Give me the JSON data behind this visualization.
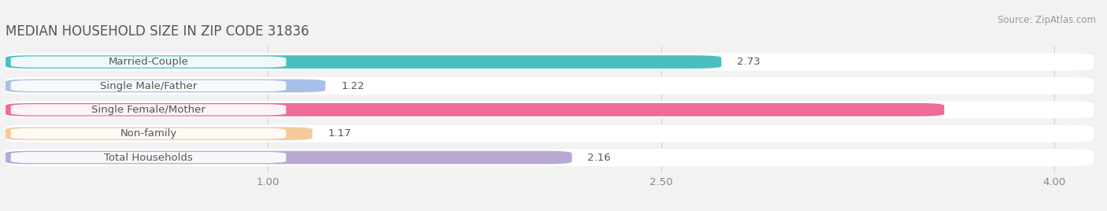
{
  "title": "MEDIAN HOUSEHOLD SIZE IN ZIP CODE 31836",
  "source": "Source: ZipAtlas.com",
  "categories": [
    "Married-Couple",
    "Single Male/Father",
    "Single Female/Mother",
    "Non-family",
    "Total Households"
  ],
  "values": [
    2.73,
    1.22,
    3.58,
    1.17,
    2.16
  ],
  "bar_colors": [
    "#4BBFBF",
    "#AABFE8",
    "#F06A9B",
    "#F5C99A",
    "#B8A8D4"
  ],
  "value_text_colors": [
    "#555555",
    "#555555",
    "#ffffff",
    "#555555",
    "#555555"
  ],
  "bar_height": 0.55,
  "xlim_left": 0.0,
  "xlim_right": 4.15,
  "xticks": [
    1.0,
    2.5,
    4.0
  ],
  "xtick_labels": [
    "1.00",
    "2.50",
    "4.00"
  ],
  "label_fontsize": 9.5,
  "value_fontsize": 9.5,
  "title_fontsize": 12,
  "source_fontsize": 8.5,
  "background_color": "#f2f2f2",
  "bar_background_color": "#ffffff",
  "grid_color": "#d0d0d0",
  "title_color": "#555555",
  "label_color": "#555555",
  "tick_color": "#888888"
}
